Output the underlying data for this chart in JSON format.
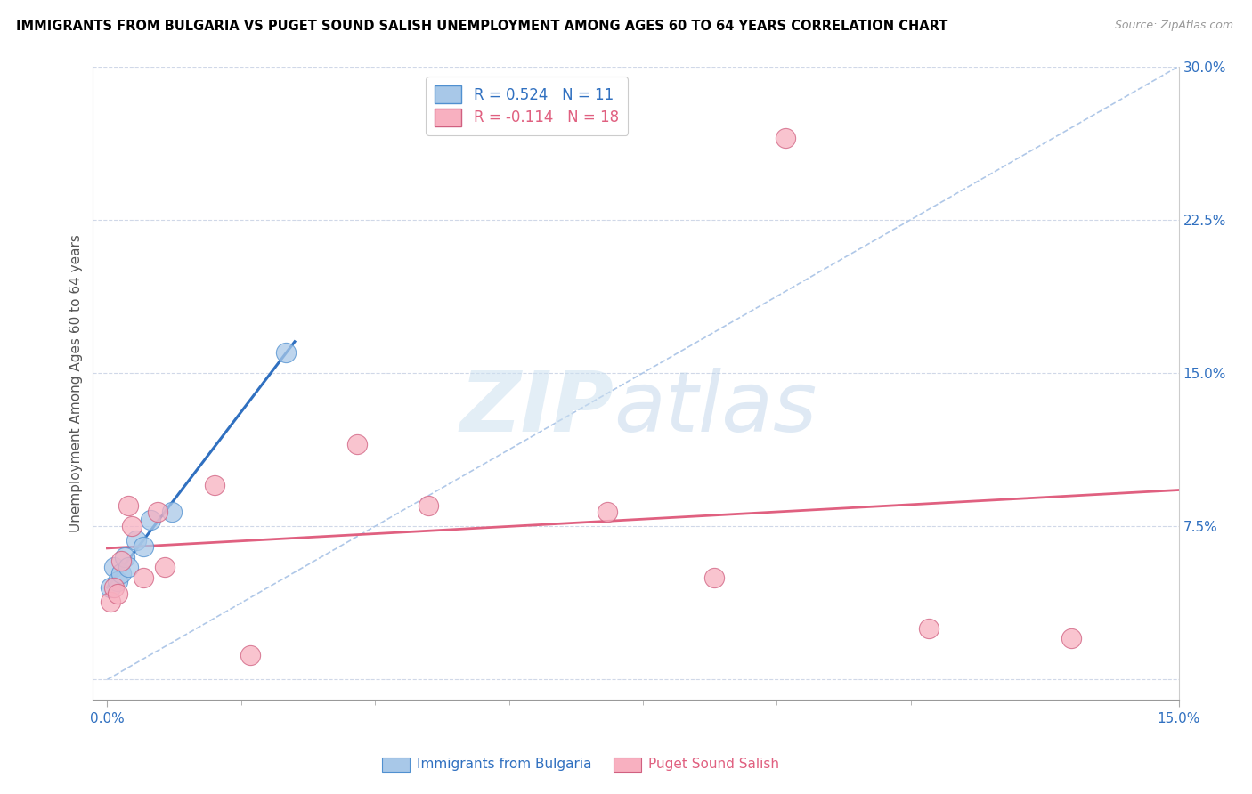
{
  "title": "IMMIGRANTS FROM BULGARIA VS PUGET SOUND SALISH UNEMPLOYMENT AMONG AGES 60 TO 64 YEARS CORRELATION CHART",
  "source": "Source: ZipAtlas.com",
  "ylabel": "Unemployment Among Ages 60 to 64 years",
  "xlim": [
    -0.2,
    15.0
  ],
  "ylim": [
    -1.0,
    30.0
  ],
  "x_data_min": 0.0,
  "x_data_max": 15.0,
  "y_data_min": 0.0,
  "y_data_max": 30.0,
  "xtick_vals": [
    0.0,
    15.0
  ],
  "xtick_labels": [
    "0.0%",
    "15.0%"
  ],
  "ytick_vals": [
    7.5,
    15.0,
    22.5,
    30.0
  ],
  "ytick_labels": [
    "7.5%",
    "15.0%",
    "22.5%",
    "30.0%"
  ],
  "grid_yticks": [
    0.0,
    7.5,
    15.0,
    22.5,
    30.0
  ],
  "bulgaria_R": 0.524,
  "bulgaria_N": 11,
  "salish_R": -0.114,
  "salish_N": 18,
  "bulgaria_color": "#a8c8e8",
  "salish_color": "#f8b0c0",
  "bulgaria_line_color": "#3070c0",
  "salish_line_color": "#e06080",
  "bulgaria_points": [
    [
      0.05,
      4.5
    ],
    [
      0.1,
      5.5
    ],
    [
      0.15,
      4.8
    ],
    [
      0.2,
      5.2
    ],
    [
      0.25,
      6.0
    ],
    [
      0.3,
      5.5
    ],
    [
      0.4,
      6.8
    ],
    [
      0.5,
      6.5
    ],
    [
      0.6,
      7.8
    ],
    [
      0.9,
      8.2
    ],
    [
      2.5,
      16.0
    ]
  ],
  "salish_points": [
    [
      0.05,
      3.8
    ],
    [
      0.1,
      4.5
    ],
    [
      0.15,
      4.2
    ],
    [
      0.2,
      5.8
    ],
    [
      0.3,
      8.5
    ],
    [
      0.35,
      7.5
    ],
    [
      0.5,
      5.0
    ],
    [
      0.7,
      8.2
    ],
    [
      0.8,
      5.5
    ],
    [
      1.5,
      9.5
    ],
    [
      2.0,
      1.2
    ],
    [
      3.5,
      11.5
    ],
    [
      4.5,
      8.5
    ],
    [
      7.0,
      8.2
    ],
    [
      8.5,
      5.0
    ],
    [
      9.5,
      26.5
    ],
    [
      11.5,
      2.5
    ],
    [
      13.5,
      2.0
    ]
  ],
  "watermark_zip": "ZIP",
  "watermark_atlas": "atlas"
}
